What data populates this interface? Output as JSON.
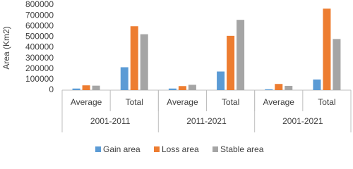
{
  "chart_data": {
    "type": "bar",
    "y_label": "Area (Km2)",
    "categories": [
      "Average",
      "Total",
      "Average",
      "Total",
      "Average",
      "Total"
    ],
    "groups": [
      "2001-2011",
      "2011-2021",
      "2001-2021"
    ],
    "series": [
      {
        "name": "Gain area",
        "color": "#5b9bd5",
        "values": [
          15000,
          215000,
          15000,
          175000,
          8000,
          100000
        ]
      },
      {
        "name": "Loss area",
        "color": "#ed7d31",
        "values": [
          45000,
          600000,
          38000,
          510000,
          58000,
          765000
        ]
      },
      {
        "name": "Stable area",
        "color": "#a5a5a5",
        "values": [
          42000,
          525000,
          50000,
          660000,
          40000,
          480000
        ]
      }
    ],
    "ylim": [
      0,
      800000
    ],
    "yticks": [
      0,
      100000,
      200000,
      300000,
      400000,
      500000,
      600000,
      700000,
      800000
    ],
    "grid": false,
    "legend": "bottom"
  }
}
